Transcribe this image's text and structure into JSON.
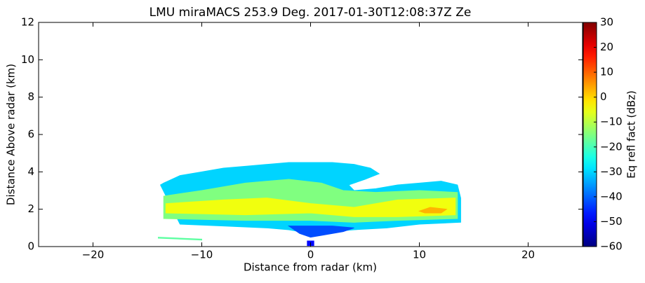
{
  "chart_data": {
    "type": "heatmap",
    "title": "LMU miraMACS 253.9 Deg. 2017-01-30T12:08:37Z  Ze",
    "xlabel": "Distance from radar (km)",
    "ylabel": "Distance Above radar  (km)",
    "colorbar_label": "Eq refl fact (dBz)",
    "colormap": "jet",
    "clim": [
      -60,
      30
    ],
    "xlim": [
      -25,
      25
    ],
    "ylim": [
      0,
      12
    ],
    "xticks": [
      {
        "value": -20,
        "label": "−20"
      },
      {
        "value": -10,
        "label": "−10"
      },
      0,
      10,
      20
    ],
    "yticks": [
      0,
      2,
      4,
      6,
      8,
      10,
      12
    ],
    "cticks": [
      {
        "value": -60,
        "label": "−60"
      },
      {
        "value": -50,
        "label": "−50"
      },
      {
        "value": -40,
        "label": "−40"
      },
      {
        "value": -30,
        "label": "−30"
      },
      {
        "value": -20,
        "label": "−20"
      },
      {
        "value": -10,
        "label": "−10"
      },
      0,
      10,
      20,
      30
    ],
    "regions": [
      {
        "value": -30,
        "x": [
          -13.8,
          -13.5,
          -12,
          -10,
          -8,
          -6,
          -4,
          -2,
          0,
          2,
          4,
          5.5,
          6.3,
          5,
          3.5,
          4,
          6,
          8,
          10,
          12,
          13.5,
          13.8,
          13.8,
          10,
          7,
          4,
          2,
          0,
          -2,
          -4,
          -8,
          -12
        ],
        "y": [
          3.3,
          3.4,
          3.8,
          4.0,
          4.2,
          4.3,
          4.4,
          4.5,
          4.5,
          4.5,
          4.4,
          4.2,
          3.9,
          3.6,
          3.3,
          3.0,
          3.1,
          3.3,
          3.4,
          3.5,
          3.3,
          2.6,
          1.3,
          1.2,
          1.0,
          0.9,
          0.8,
          0.7,
          0.9,
          1.0,
          1.1,
          1.2
        ]
      },
      {
        "value": -15,
        "x": [
          -13.5,
          -13.5,
          -10,
          -6,
          -2,
          1,
          3,
          6,
          10,
          13.5,
          13.5,
          8,
          4,
          0,
          -6
        ],
        "y": [
          1.5,
          2.7,
          3.0,
          3.4,
          3.6,
          3.4,
          3.0,
          2.9,
          3.0,
          2.9,
          1.5,
          1.4,
          1.3,
          1.4,
          1.4
        ]
      },
      {
        "value": -5,
        "x": [
          -13.3,
          -13.3,
          -8,
          -4,
          0,
          4,
          8,
          13.3,
          13.3,
          8,
          4,
          0,
          -6
        ],
        "y": [
          1.8,
          2.3,
          2.5,
          2.6,
          2.3,
          2.1,
          2.5,
          2.6,
          1.7,
          1.6,
          1.6,
          1.8,
          1.7
        ]
      },
      {
        "value": 3,
        "x": [
          10,
          11,
          12.5,
          12,
          10.5
        ],
        "y": [
          1.9,
          2.1,
          2.0,
          1.8,
          1.8
        ]
      },
      {
        "value": -42,
        "x": [
          -2,
          2,
          4,
          3,
          1,
          0,
          -1
        ],
        "y": [
          1.1,
          1.1,
          1.0,
          0.8,
          0.6,
          0.5,
          0.7
        ]
      },
      {
        "value": -18,
        "x": [
          -14,
          -10,
          -10,
          -14
        ],
        "y": [
          0.5,
          0.4,
          0.35,
          0.45
        ]
      },
      {
        "value": -48,
        "x": [
          -0.3,
          0.3,
          0.3,
          -0.3
        ],
        "y": [
          0.3,
          0.3,
          0.05,
          0.05
        ]
      }
    ]
  }
}
